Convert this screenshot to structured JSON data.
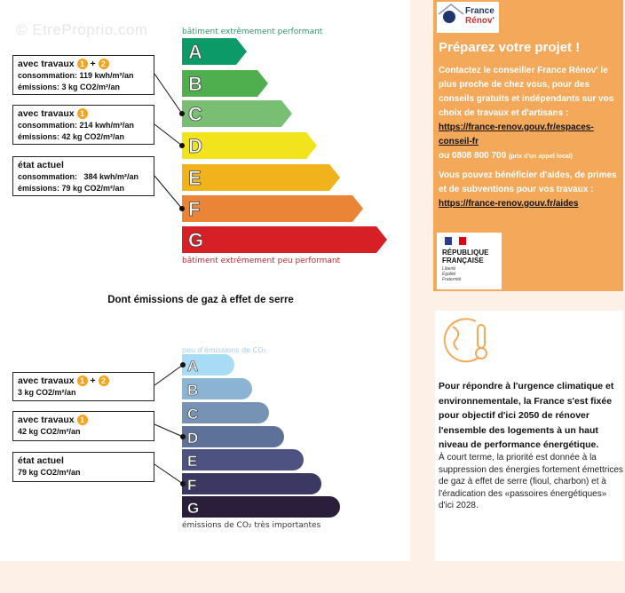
{
  "watermark": "© EtreProprio.com",
  "energy": {
    "top_label": "bâtiment extrêmement performant",
    "bottom_label": "bâtiment extrêmement peu performant",
    "classes": [
      "A",
      "B",
      "C",
      "D",
      "E",
      "F",
      "G"
    ],
    "colors": [
      "#0b9a68",
      "#4fae4e",
      "#78bf74",
      "#f1e41c",
      "#f0b31c",
      "#ea8436",
      "#d71f26"
    ],
    "boxes": [
      {
        "title": "avec travaux",
        "badges": [
          "1",
          "2"
        ],
        "line1": "consommation: 119 kwh/m²/an",
        "line2": "émissions: 3 kg CO2/m²/an",
        "class": "C"
      },
      {
        "title": "avec travaux",
        "badges": [
          "1"
        ],
        "line1": "consommation: 214 kwh/m²/an",
        "line2": "émissions: 42 kg CO2/m²/an",
        "class": "D"
      },
      {
        "title": "état actuel",
        "badges": [],
        "line1": "consommation:   384 kwh/m²/an",
        "line2": "émissions: 79 kg CO2/m²/an",
        "class": "F"
      }
    ]
  },
  "ges": {
    "title": "Dont émissions de gaz à effet de serre",
    "top_label": "peu d'émissions de CO₂",
    "bottom_label": "émissions de CO₂ très importantes",
    "classes": [
      "A",
      "B",
      "C",
      "D",
      "E",
      "F",
      "G"
    ],
    "colors": [
      "#a8dbf5",
      "#8bb3d3",
      "#7693b5",
      "#5e7199",
      "#4d5281",
      "#3b3961",
      "#2b1e3a"
    ],
    "boxes": [
      {
        "title": "avec travaux",
        "badges": [
          "1",
          "2"
        ],
        "line1": "3 kg CO2/m²/an",
        "class": "A"
      },
      {
        "title": "avec travaux",
        "badges": [
          "1"
        ],
        "line1": "42 kg CO2/m²/an",
        "class": "D"
      },
      {
        "title": "état actuel",
        "badges": [],
        "line1": "79 kg CO2/m²/an",
        "class": "F"
      }
    ]
  },
  "france_renov": {
    "logo_line1": "France",
    "logo_line2": "Rénov'",
    "title": "Préparez votre projet !",
    "p1": "Contactez le conseiller France Rénov' le plus proche de chez vous, pour des conseils gratuits et indépendants sur vos choix de travaux et d'artisans :",
    "link1": "https://france-renov.gouv.fr/espaces-conseil-fr",
    "phone": "ou 0808 800 700",
    "phone_note": "(prix d'un appel local)",
    "p2": "Vous pouvez bénéficier d'aides, de primes et de subventions pour vos travaux :",
    "link2": "https://france-renov.gouv.fr/aides",
    "rep_line1": "RÉPUBLIQUE",
    "rep_line2": "FRANÇAISE",
    "motto": "Liberté Égalité Fraternité",
    "accent": "#f4a95a"
  },
  "climate": {
    "bold": "Pour répondre à l'urgence climatique et environnementale, la France s'est fixée pour objectif d'ici 2050 de rénover l'ensemble des logements à un haut niveau de performance énergétique.",
    "normal": "À court terme, la priorité est donnée à la suppression des énergies fortement émettrices de gaz à effet de serre (fioul, charbon) et à l'éradication des «passoires énergétiques» d'ici 2028."
  }
}
